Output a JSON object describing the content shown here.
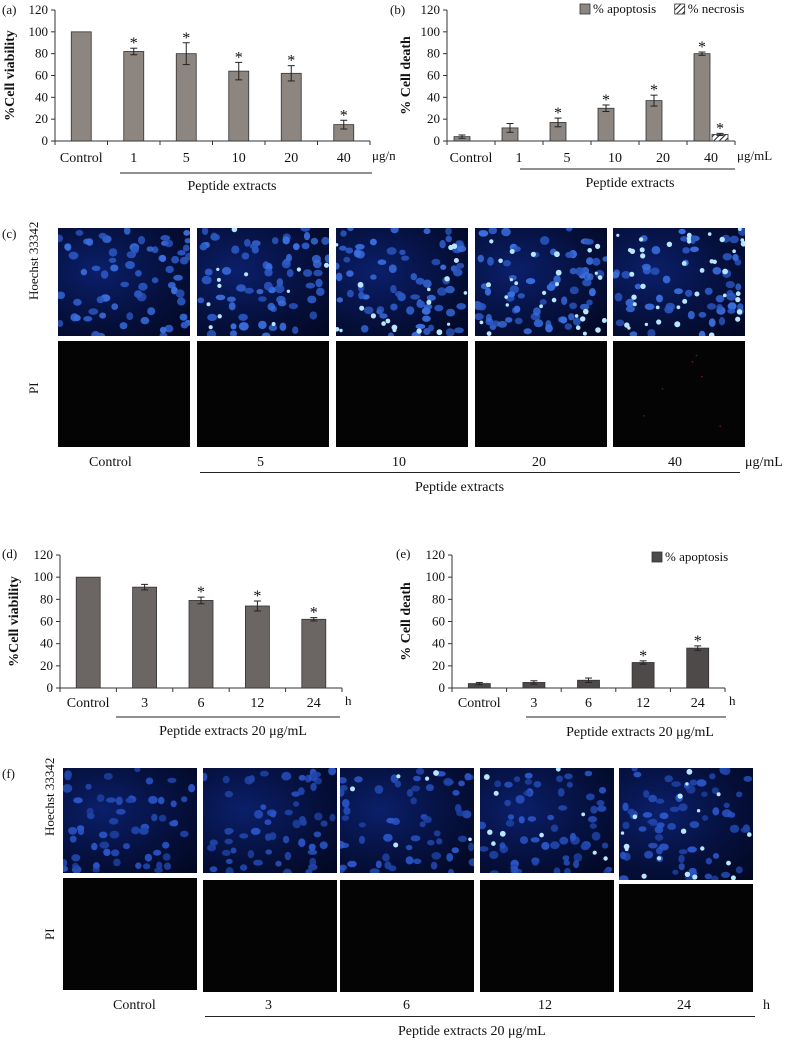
{
  "panels": {
    "a": "(a)",
    "b": "(b)",
    "c": "(c)",
    "d": "(d)",
    "e": "(e)",
    "f": "(f)"
  },
  "chart_data": [
    {
      "id": "a",
      "type": "bar",
      "ylabel": "%Cell viability",
      "ylim": [
        0,
        120
      ],
      "yticks": [
        0,
        20,
        40,
        60,
        80,
        100,
        120
      ],
      "categories": [
        "Control",
        "1",
        "5",
        "10",
        "20",
        "40"
      ],
      "unit": "μg/mL",
      "group_label": "Peptide extracts",
      "series": [
        {
          "values": [
            100,
            82,
            80,
            64,
            62,
            15
          ],
          "errors": [
            0,
            3,
            10,
            8,
            7,
            4
          ],
          "significant": [
            false,
            true,
            true,
            true,
            true,
            true
          ],
          "color": "#8c8580"
        }
      ]
    },
    {
      "id": "b",
      "type": "bar",
      "ylabel": "% Cell death",
      "ylim": [
        0,
        120
      ],
      "yticks": [
        0,
        20,
        40,
        60,
        80,
        100,
        120
      ],
      "categories": [
        "Control",
        "1",
        "5",
        "10",
        "20",
        "40"
      ],
      "unit": "μg/mL",
      "group_label": "Peptide extracts",
      "legend": "top-right",
      "series": [
        {
          "name": "% apoptosis",
          "values": [
            4,
            12,
            17,
            30,
            37,
            80
          ],
          "errors": [
            1.5,
            4,
            4,
            3,
            5,
            1.5
          ],
          "significant": [
            false,
            false,
            true,
            true,
            true,
            true
          ],
          "color": "#8c8580"
        },
        {
          "name": "% necrosis",
          "values": [
            0,
            0,
            0,
            0,
            0,
            6
          ],
          "errors": [
            0,
            0,
            0,
            0,
            0,
            1
          ],
          "significant": [
            false,
            false,
            false,
            false,
            false,
            true
          ],
          "color": "hatch"
        }
      ]
    },
    {
      "id": "d",
      "type": "bar",
      "ylabel": "%Cell viability",
      "ylim": [
        0,
        120
      ],
      "yticks": [
        0,
        20,
        40,
        60,
        80,
        100,
        120
      ],
      "categories": [
        "Control",
        "3",
        "6",
        "12",
        "24"
      ],
      "unit": "h",
      "group_label": "Peptide extracts 20 μg/mL",
      "series": [
        {
          "values": [
            100,
            91,
            79,
            74,
            62
          ],
          "errors": [
            0,
            2.5,
            3,
            4.5,
            1.5
          ],
          "significant": [
            false,
            false,
            true,
            true,
            true
          ],
          "color": "#6b6564"
        }
      ]
    },
    {
      "id": "e",
      "type": "bar",
      "ylabel": "% Cell death",
      "ylim": [
        0,
        120
      ],
      "yticks": [
        0,
        20,
        40,
        60,
        80,
        100,
        120
      ],
      "categories": [
        "Control",
        "3",
        "6",
        "12",
        "24"
      ],
      "unit": "h",
      "group_label": "Peptide extracts 20 μg/mL",
      "legend": "top-right",
      "series": [
        {
          "name": "% apoptosis",
          "values": [
            4,
            5,
            7,
            23,
            36
          ],
          "errors": [
            1,
            1.5,
            2,
            1.5,
            2
          ],
          "significant": [
            false,
            false,
            false,
            true,
            true
          ],
          "color": "#4f4a4a"
        }
      ]
    }
  ],
  "images_c": {
    "row1": "Hoechst 33342",
    "row2": "PI",
    "cols": [
      "Control",
      "5",
      "10",
      "20",
      "40"
    ],
    "unit": "μg/mL",
    "group_label": "Peptide extracts"
  },
  "images_f": {
    "row1": "Hoechst 33342",
    "row2": "PI",
    "cols": [
      "Control",
      "3",
      "6",
      "12",
      "24"
    ],
    "unit": "h",
    "group_label": "Peptide extracts 20 μg/mL"
  },
  "star": "*"
}
